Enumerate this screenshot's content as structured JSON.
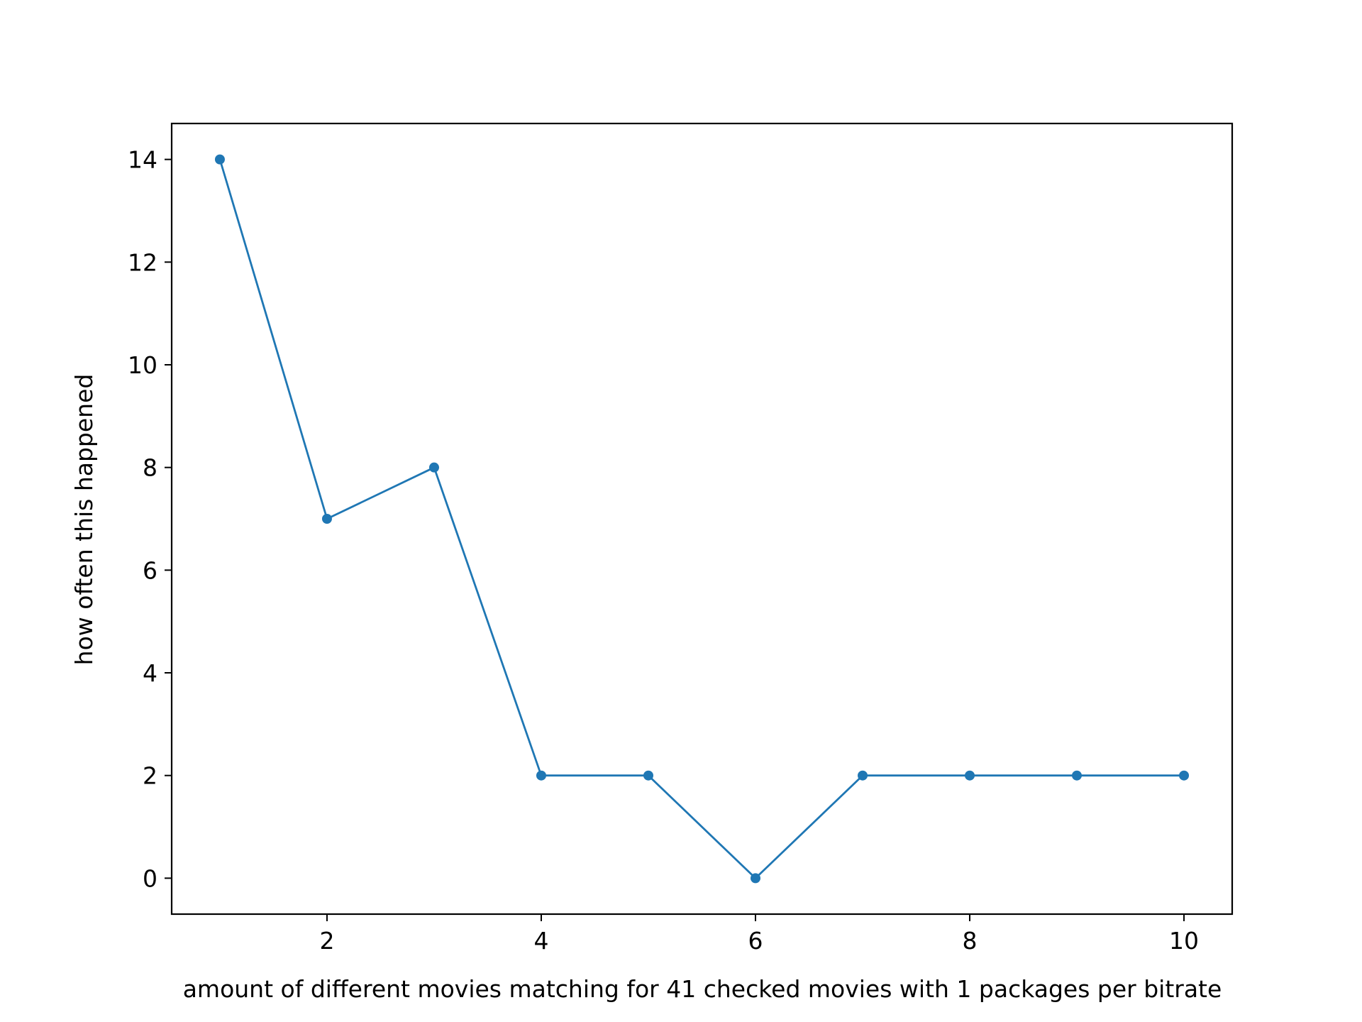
{
  "chart_data": {
    "type": "line",
    "x": [
      1,
      2,
      3,
      4,
      5,
      6,
      7,
      8,
      9,
      10
    ],
    "series": [
      {
        "values": [
          14,
          7,
          8,
          2,
          2,
          0,
          2,
          2,
          2,
          2
        ]
      }
    ],
    "xlabel": "amount of different movies matching for 41 checked movies with 1 packages per bitrate",
    "ylabel": "how often this happened",
    "xlim": [
      0.55,
      10.45
    ],
    "ylim": [
      -0.7,
      14.7
    ],
    "xticks": [
      2,
      4,
      6,
      8,
      10
    ],
    "yticks": [
      0,
      2,
      4,
      6,
      8,
      10,
      12,
      14
    ],
    "xtick_labels": [
      "2",
      "4",
      "6",
      "8",
      "10"
    ],
    "ytick_labels": [
      "0",
      "2",
      "4",
      "6",
      "8",
      "10",
      "12",
      "14"
    ],
    "grid": false,
    "color": "#1f77b4",
    "marker": "circle"
  }
}
